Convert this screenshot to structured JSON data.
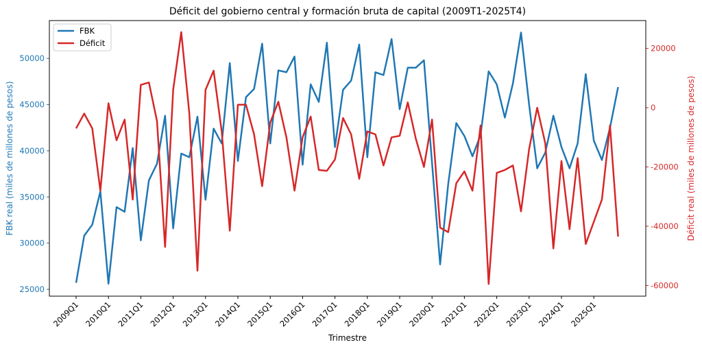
{
  "chart_data": {
    "type": "line",
    "title": "Déficit del gobierno central y formación bruta de capital (2009T1-2025T4)",
    "xlabel": "Trimestre",
    "ylabel_left": "FBK real (miles de millones de pesos)",
    "ylabel_right": "Déficit real (miles de millones de pesos)",
    "x_start_year": 2009,
    "n_quarters": 68,
    "x_tick_labels": [
      "2009Q1",
      "2010Q1",
      "2011Q1",
      "2012Q1",
      "2013Q1",
      "2014Q1",
      "2015Q1",
      "2016Q1",
      "2017Q1",
      "2018Q1",
      "2019Q1",
      "2020Q1",
      "2021Q1",
      "2022Q1",
      "2023Q1",
      "2024Q1",
      "2025Q1"
    ],
    "ylim_left": [
      24260,
      54100
    ],
    "yticks_left": [
      25000,
      30000,
      35000,
      40000,
      45000,
      50000
    ],
    "ylim_right": [
      -63600,
      29400
    ],
    "yticks_right": [
      -60000,
      -40000,
      -20000,
      0,
      20000
    ],
    "legend_position": "top-left",
    "grid": false,
    "series": [
      {
        "name": "FBK",
        "axis": "left",
        "color": "#1f77b4",
        "values": [
          25700,
          30800,
          32000,
          35600,
          25600,
          33900,
          33400,
          40300,
          30300,
          36800,
          38600,
          43800,
          31600,
          39700,
          39300,
          43700,
          34700,
          42400,
          40800,
          49500,
          38900,
          45800,
          46700,
          51600,
          40800,
          48700,
          48500,
          50200,
          38500,
          47200,
          45300,
          51700,
          40400,
          46600,
          47600,
          51500,
          39300,
          48500,
          48200,
          52100,
          44500,
          49000,
          49000,
          49800,
          38700,
          27700,
          36400,
          43000,
          41600,
          39400,
          41700,
          48600,
          47200,
          43600,
          47300,
          52800,
          45000,
          38100,
          39800,
          43800,
          40400,
          38100,
          40800,
          48300,
          41100,
          39000,
          42500,
          46900
        ]
      },
      {
        "name": "Déficit",
        "axis": "right",
        "color": "#d62728",
        "values": [
          -7000,
          -2000,
          -7000,
          -28000,
          1500,
          -11000,
          -4000,
          -31000,
          7700,
          8500,
          -4500,
          -47000,
          6000,
          25500,
          -2000,
          -55000,
          6000,
          12500,
          -8000,
          -41500,
          1000,
          1000,
          -9000,
          -26500,
          -5000,
          2000,
          -10000,
          -28000,
          -10000,
          -3000,
          -21000,
          -21300,
          -17500,
          -3500,
          -9000,
          -24000,
          -8000,
          -9000,
          -19500,
          -10000,
          -9500,
          1800,
          -10500,
          -20000,
          -4000,
          -40500,
          -42000,
          -25500,
          -21500,
          -28000,
          -6000,
          -59500,
          -22000,
          -21000,
          -19500,
          -35000,
          -14000,
          0,
          -12000,
          -47500,
          -18000,
          -41000,
          -17000,
          -46000,
          -38500,
          -31000,
          -6000,
          -43500
        ]
      }
    ]
  }
}
